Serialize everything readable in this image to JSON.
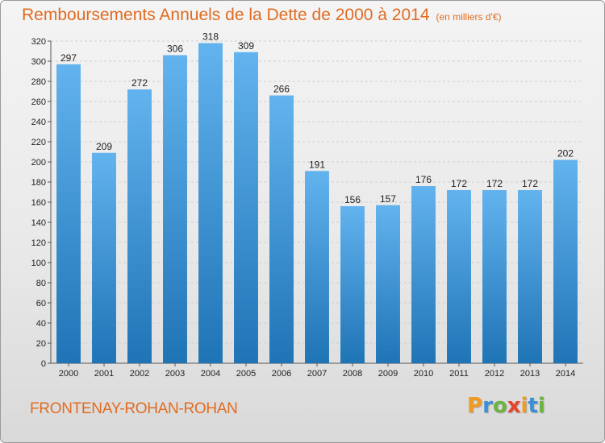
{
  "header": {
    "title": "Remboursements Annuels de la Dette de 2000 à 2014",
    "unit": "(en milliers d'€)"
  },
  "footer": {
    "commune": "FRONTENAY-ROHAN-ROHAN",
    "logo_text": "Proxiti"
  },
  "colors": {
    "title": "#e06c22",
    "bar_top": "#62b3ee",
    "bar_bottom": "#1f74b6"
  },
  "chart_data": {
    "type": "bar",
    "title": "Remboursements Annuels de la Dette de 2000 à 2014",
    "categories": [
      "2000",
      "2001",
      "2002",
      "2003",
      "2004",
      "2005",
      "2006",
      "2007",
      "2008",
      "2009",
      "2010",
      "2011",
      "2012",
      "2013",
      "2014"
    ],
    "values": [
      297,
      209,
      272,
      306,
      318,
      309,
      266,
      191,
      156,
      157,
      176,
      172,
      172,
      172,
      202
    ],
    "ylim": [
      0,
      320
    ],
    "yticks": [
      0,
      20,
      40,
      60,
      80,
      100,
      120,
      140,
      160,
      180,
      200,
      220,
      240,
      260,
      280,
      300,
      320
    ],
    "grid": true,
    "xlabel": "",
    "ylabel": ""
  }
}
